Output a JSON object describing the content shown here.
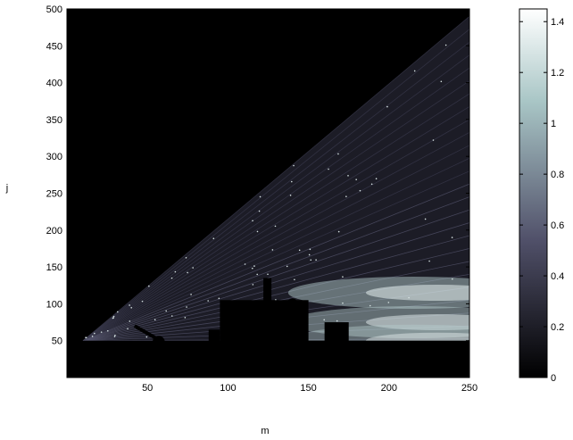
{
  "chart_data": {
    "type": "heatmap",
    "title": "",
    "xlabel": "m",
    "ylabel": "j",
    "xlim": [
      0,
      250
    ],
    "ylim": [
      0,
      500
    ],
    "x_ticks": [
      "50",
      "100",
      "150",
      "200",
      "250"
    ],
    "y_ticks": [
      "50",
      "100",
      "150",
      "200",
      "250",
      "300",
      "350",
      "400",
      "450",
      "500"
    ],
    "colorbar": {
      "range": [
        0,
        1.45
      ],
      "ticks": [
        "0",
        "0.2",
        "0.4",
        "0.6",
        "0.8",
        "1",
        "1.2",
        "1.4"
      ],
      "colormap": "bone"
    },
    "description_values": {
      "source_m": 10,
      "source_j": 50,
      "ray_fan_upper_edge_j_at_250": 490,
      "bright_lobes": [
        {
          "j_center": 115,
          "intensity": 1.3
        },
        {
          "j_center": 75,
          "intensity": 1.2
        },
        {
          "j_center": 50,
          "intensity": 1.1
        }
      ]
    },
    "obstacles": [
      {
        "name": "ground",
        "m_from": 10,
        "m_to": 250,
        "j_top": 50
      },
      {
        "name": "block-a",
        "m_from": 88,
        "m_to": 95,
        "j_top": 65
      },
      {
        "name": "block-b",
        "m_from": 95,
        "m_to": 150,
        "j_top": 105
      },
      {
        "name": "tower",
        "m_from": 122,
        "m_to": 127,
        "j_top": 135
      },
      {
        "name": "block-c",
        "m_from": 160,
        "m_to": 175,
        "j_top": 75
      }
    ]
  }
}
